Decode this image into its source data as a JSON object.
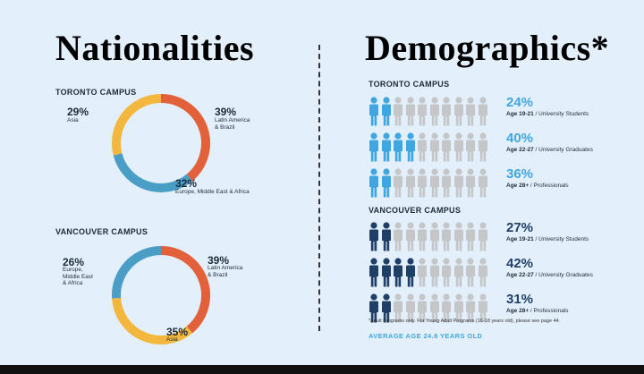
{
  "titles": {
    "left": "Nationalities",
    "right": "Demographics*"
  },
  "nationalities": {
    "toronto": {
      "campus": "TORONTO CAMPUS",
      "segments": [
        {
          "pct": "39%",
          "value": 39,
          "label": "Latin America\n& Brazil",
          "color": "#e2603a"
        },
        {
          "pct": "32%",
          "value": 32,
          "label": "Europe, Middle East & Africa",
          "color": "#4a9dc4"
        },
        {
          "pct": "29%",
          "value": 29,
          "label": "Asia",
          "color": "#f3b73d"
        }
      ]
    },
    "vancouver": {
      "campus": "VANCOUVER CAMPUS",
      "segments": [
        {
          "pct": "39%",
          "value": 39,
          "label": "Latin America\n& Brazil",
          "color": "#e2603a"
        },
        {
          "pct": "35%",
          "value": 35,
          "label": "Asia",
          "color": "#f3b73d"
        },
        {
          "pct": "26%",
          "value": 26,
          "label": "Europe,\nMiddle East\n& Africa",
          "color": "#4a9dc4"
        }
      ]
    }
  },
  "demographics": {
    "toronto": {
      "campus": "TORONTO CAMPUS",
      "color": "#3fa6df",
      "rows": [
        {
          "pct": "24%",
          "highlighted": 2,
          "age": "Age 19-21",
          "desc": " / University Students"
        },
        {
          "pct": "40%",
          "highlighted": 4,
          "age": "Age 22-27",
          "desc": " / University Graduates"
        },
        {
          "pct": "36%",
          "highlighted": 2,
          "age": "Age 28+",
          "desc": " / Professionals"
        }
      ]
    },
    "vancouver": {
      "campus": "VANCOUVER CAMPUS",
      "color": "#1f3f66",
      "rows": [
        {
          "pct": "27%",
          "highlighted": 2,
          "age": "Age 19-21",
          "desc": " / University Students"
        },
        {
          "pct": "42%",
          "highlighted": 4,
          "age": "Age 22-27",
          "desc": " / University Graduates"
        },
        {
          "pct": "31%",
          "highlighted": 2,
          "age": "Age 28+",
          "desc": " / Professionals"
        }
      ]
    },
    "footnote": "*Adult Programs only. For Young Adult Programs (16-18 years old), please see page 44.",
    "average": "AVERAGE AGE 24.8 YEARS OLD",
    "inactive_color": "#c4c6c8",
    "figures_per_row": 10
  }
}
